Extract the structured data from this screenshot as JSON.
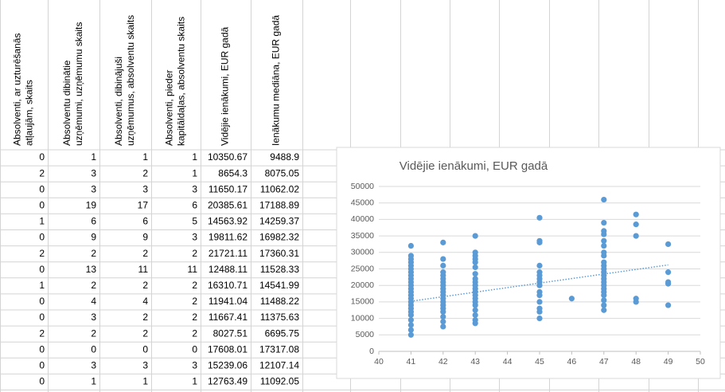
{
  "table": {
    "headers": [
      [
        "Absolventi, ar uzturēšanās",
        "atļaujām, skaits"
      ],
      [
        "Absolventu dibinātie",
        "uzņēmumi, uzņēmumu skaits"
      ],
      [
        "Absolventi, dibinājuši",
        "uzņēmumus, absolventu skaits"
      ],
      [
        "Absolventi, pieder",
        "kapitāldaļas, absolventu skaits"
      ],
      [
        "Vidējie ienākumi, EUR gadā"
      ],
      [
        "Ienākumu mediāna, EUR gadā"
      ]
    ],
    "rows": [
      [
        0,
        1,
        1,
        1,
        10350.67,
        9488.9
      ],
      [
        2,
        3,
        2,
        1,
        8654.3,
        8075.05
      ],
      [
        0,
        3,
        3,
        3,
        11650.17,
        11062.02
      ],
      [
        0,
        19,
        17,
        6,
        20385.61,
        17188.89
      ],
      [
        1,
        6,
        6,
        5,
        14563.92,
        14259.37
      ],
      [
        0,
        9,
        9,
        3,
        19811.62,
        16982.32
      ],
      [
        2,
        2,
        2,
        2,
        21721.11,
        17360.31
      ],
      [
        0,
        13,
        11,
        11,
        12488.11,
        11528.33
      ],
      [
        1,
        2,
        2,
        2,
        16310.71,
        14541.99
      ],
      [
        0,
        4,
        4,
        2,
        11941.04,
        11488.22
      ],
      [
        0,
        3,
        2,
        2,
        11667.41,
        11375.63
      ],
      [
        2,
        2,
        2,
        2,
        8027.51,
        6695.75
      ],
      [
        0,
        0,
        0,
        0,
        17608.01,
        17317.08
      ],
      [
        0,
        3,
        3,
        3,
        15239.06,
        12107.14
      ],
      [
        0,
        1,
        1,
        1,
        12763.49,
        11092.05
      ]
    ]
  },
  "chart_data": {
    "type": "scatter",
    "title": "Vidējie ienākumi, EUR gadā",
    "xlim": [
      40,
      50
    ],
    "xticks": [
      40,
      41,
      42,
      43,
      44,
      45,
      46,
      47,
      48,
      49,
      50
    ],
    "ylim": [
      0,
      50000
    ],
    "yticks": [
      0,
      5000,
      10000,
      15000,
      20000,
      25000,
      30000,
      35000,
      40000,
      45000,
      50000
    ],
    "grid": true,
    "color": "#5b9bd5",
    "x": [
      41,
      41,
      41,
      41,
      41,
      41,
      41,
      41,
      41,
      41,
      41,
      41,
      41,
      41,
      41,
      41,
      41,
      41,
      41,
      41,
      41,
      41,
      41,
      41,
      42,
      42,
      42,
      42,
      42,
      42,
      42,
      42,
      42,
      42,
      42,
      42,
      42,
      42,
      42,
      42,
      42,
      42,
      42,
      43,
      43,
      43,
      43,
      43,
      43,
      43,
      43,
      43,
      43,
      43,
      43,
      43,
      43,
      43,
      43,
      43,
      43,
      43,
      43,
      45,
      45,
      45,
      45,
      45,
      45,
      45,
      45,
      45,
      45,
      45,
      45,
      45,
      45,
      45,
      46,
      47,
      47,
      47,
      47,
      47,
      47,
      47,
      47,
      47,
      47,
      47,
      47,
      47,
      47,
      47,
      47,
      47,
      47,
      47,
      47,
      47,
      47,
      48,
      48,
      48,
      48,
      48,
      49,
      49,
      49,
      49,
      49
    ],
    "values": [
      5000,
      6500,
      8000,
      9500,
      11000,
      12000,
      13000,
      14000,
      15000,
      16000,
      17000,
      18000,
      19000,
      20000,
      21000,
      22000,
      23000,
      24000,
      25000,
      26000,
      27000,
      28000,
      29000,
      32000,
      7500,
      9000,
      10500,
      12000,
      13000,
      14000,
      15000,
      16000,
      17000,
      18000,
      19000,
      20000,
      21000,
      22000,
      23000,
      24000,
      26000,
      28000,
      33000,
      8500,
      9500,
      11000,
      12500,
      14000,
      15000,
      16000,
      17000,
      18000,
      19000,
      20000,
      21000,
      22000,
      23500,
      25500,
      27000,
      28000,
      29000,
      30000,
      35000,
      10000,
      12000,
      13000,
      15000,
      17000,
      18000,
      20000,
      21000,
      22000,
      23000,
      24000,
      26000,
      33000,
      33500,
      40500,
      16000,
      12500,
      14000,
      15500,
      17000,
      18000,
      19000,
      20000,
      21000,
      22000,
      23000,
      24000,
      25000,
      26000,
      27000,
      29000,
      30000,
      32000,
      33500,
      35500,
      36500,
      39000,
      46000,
      15000,
      16000,
      35000,
      38500,
      41500,
      14000,
      20500,
      21000,
      24000,
      32500
    ],
    "trendline": {
      "x": [
        41,
        49
      ],
      "values": [
        15200,
        26200
      ]
    }
  }
}
